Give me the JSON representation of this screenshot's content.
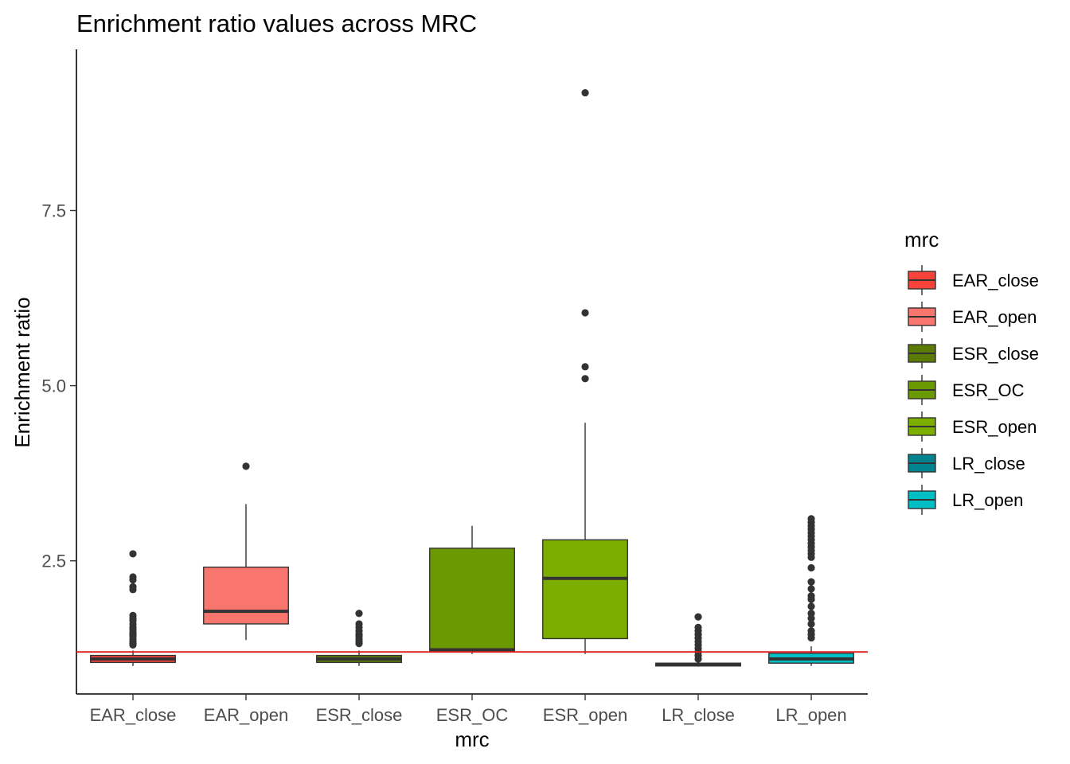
{
  "chart_data": {
    "type": "boxplot",
    "title": "Enrichment ratio values across MRC",
    "xlabel": "mrc",
    "ylabel": "Enrichment ratio",
    "ylim": [
      0.6,
      9.8
    ],
    "yticks": [
      2.5,
      5.0,
      7.5
    ],
    "ytick_labels": [
      "2.5",
      "5.0",
      "7.5"
    ],
    "reference_line": {
      "y": 1.2,
      "color": "#e31a1c"
    },
    "grid": false,
    "legend": {
      "title": "mrc",
      "placement": "right"
    },
    "categories": [
      "EAR_close",
      "EAR_open",
      "ESR_close",
      "ESR_OC",
      "ESR_open",
      "LR_close",
      "LR_open"
    ],
    "series": [
      {
        "category": "EAR_close",
        "color": "#f8433b",
        "whisker_low": 1.0,
        "q1": 1.05,
        "median": 1.1,
        "q3": 1.15,
        "whisker_high": 1.22,
        "outliers": [
          2.6,
          2.27,
          2.23,
          2.13,
          2.09,
          1.72,
          1.68,
          1.65,
          1.6,
          1.55,
          1.52,
          1.48,
          1.45,
          1.42,
          1.38,
          1.35,
          1.32,
          1.3
        ]
      },
      {
        "category": "EAR_open",
        "color": "#f8766d",
        "whisker_low": 1.37,
        "q1": 1.6,
        "median": 1.78,
        "q3": 2.41,
        "whisker_high": 3.31,
        "outliers": [
          3.85
        ]
      },
      {
        "category": "ESR_close",
        "color": "#5c7a06",
        "whisker_low": 1.0,
        "q1": 1.05,
        "median": 1.1,
        "q3": 1.15,
        "whisker_high": 1.22,
        "outliers": [
          1.75,
          1.6,
          1.55,
          1.5,
          1.45,
          1.42,
          1.38,
          1.35,
          1.32
        ]
      },
      {
        "category": "ESR_OC",
        "color": "#6b9900",
        "whisker_low": 1.17,
        "q1": 1.2,
        "median": 1.23,
        "q3": 2.68,
        "whisker_high": 3.0,
        "outliers": []
      },
      {
        "category": "ESR_open",
        "color": "#7cae00",
        "whisker_low": 1.17,
        "q1": 1.39,
        "median": 2.25,
        "q3": 2.8,
        "whisker_high": 4.47,
        "outliers": [
          9.18,
          6.04,
          5.27,
          5.1
        ]
      },
      {
        "category": "LR_close",
        "color": "#00838f",
        "whisker_low": 0.99,
        "q1": 1.0,
        "median": 1.02,
        "q3": 1.04,
        "whisker_high": 1.06,
        "outliers": [
          1.7,
          1.55,
          1.5,
          1.45,
          1.4,
          1.35,
          1.3,
          1.25,
          1.2,
          1.15,
          1.1
        ]
      },
      {
        "category": "LR_open",
        "color": "#00bfc4",
        "whisker_low": 1.0,
        "q1": 1.04,
        "median": 1.1,
        "q3": 1.18,
        "whisker_high": 1.28,
        "outliers": [
          3.1,
          3.05,
          3.0,
          2.95,
          2.9,
          2.85,
          2.8,
          2.75,
          2.7,
          2.65,
          2.6,
          2.55,
          2.4,
          2.2,
          2.1,
          2.0,
          1.95,
          1.85,
          1.75,
          1.68,
          1.6,
          1.5,
          1.45,
          1.4
        ]
      }
    ]
  }
}
